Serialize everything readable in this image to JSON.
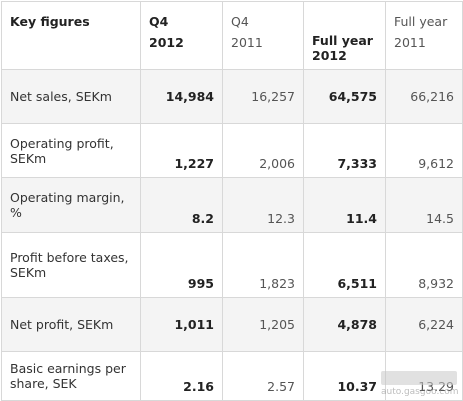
{
  "table": {
    "header": {
      "label": "Key figures",
      "col1_top": "Q4",
      "col1_sub": "2012",
      "col2_top": "Q4",
      "col2_sub": "2011",
      "col3_top": "Full year",
      "col3_sub": "2012",
      "col4_top": "Full year",
      "col4_sub": "2011"
    },
    "rows": [
      {
        "label": "Net sales, SEKm",
        "q4_2012": "14,984",
        "q4_2011": "16,257",
        "fy_2012": "64,575",
        "fy_2011": "66,216"
      },
      {
        "label": "Operating profit, SEKm",
        "q4_2012": "1,227",
        "q4_2011": "2,006",
        "fy_2012": "7,333",
        "fy_2011": "9,612"
      },
      {
        "label": "Operating margin, %",
        "q4_2012": "8.2",
        "q4_2011": "12.3",
        "fy_2012": "11.4",
        "fy_2011": "14.5"
      },
      {
        "label": "Profit before taxes, SEKm",
        "q4_2012": "995",
        "q4_2011": "1,823",
        "fy_2012": "6,511",
        "fy_2011": "8,932"
      },
      {
        "label": "Net profit, SEKm",
        "q4_2012": "1,011",
        "q4_2011": "1,205",
        "fy_2012": "4,878",
        "fy_2011": "6,224"
      },
      {
        "label": "Basic earnings per share, SEK",
        "q4_2012": "2.16",
        "q4_2011": "2.57",
        "fy_2012": "10.37",
        "fy_2011": "13.29"
      }
    ]
  },
  "watermark": {
    "site": "auto.gasgoo.com"
  }
}
